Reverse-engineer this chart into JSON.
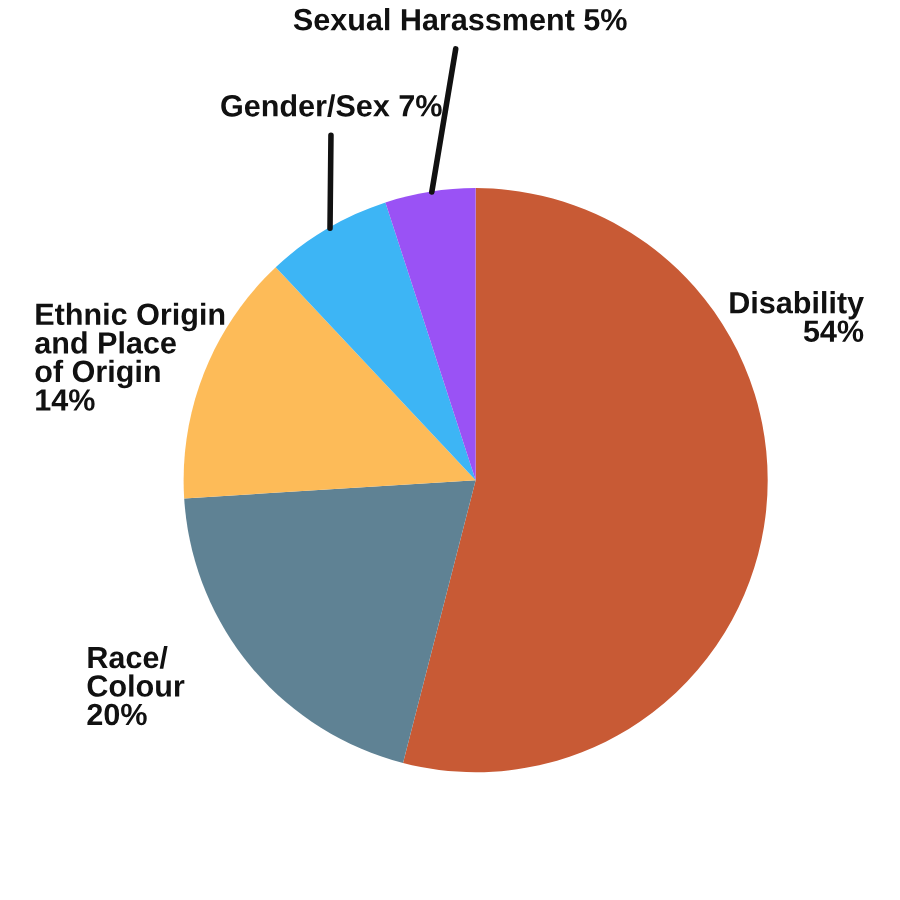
{
  "chart_data": {
    "type": "pie",
    "categories": [
      "Disability",
      "Race/\nColour",
      "Ethnic Origin\nand Place\nof Origin",
      "Gender/Sex",
      "Sexual Harassment"
    ],
    "values": [
      54,
      20,
      14,
      7,
      5
    ],
    "value_labels": [
      "54%",
      "20%",
      "14%",
      "7%",
      "5%"
    ],
    "colors": [
      "#c85a35",
      "#5f8294",
      "#fdbb58",
      "#3db5f5",
      "#9a52f5"
    ],
    "legend": false
  }
}
